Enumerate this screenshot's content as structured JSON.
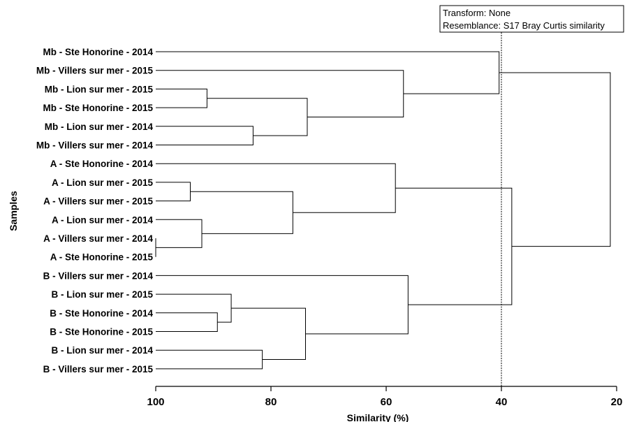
{
  "chart_data": {
    "type": "dendrogram",
    "xlabel": "Similarity (%)",
    "ylabel": "Samples",
    "xlim": [
      100,
      20
    ],
    "xticks": [
      100,
      80,
      60,
      40,
      20
    ],
    "cutoff_line": 40,
    "legend": [
      "Transform: None",
      "Resemblance: S17 Bray Curtis similarity"
    ],
    "legend_position": "top-right",
    "leaves": [
      "Mb - Ste Honorine - 2014",
      "Mb - Villers sur mer - 2015",
      "Mb - Lion sur mer - 2015",
      "Mb - Ste Honorine - 2015",
      "Mb - Lion sur mer - 2014",
      "Mb - Villers sur mer - 2014",
      "A - Ste Honorine - 2014",
      "A - Lion sur mer - 2015",
      "A - Villers sur mer - 2015",
      "A - Lion sur mer - 2014",
      "A - Villers sur mer - 2014",
      "A - Ste Honorine - 2015",
      "B - Villers sur mer - 2014",
      "B - Lion sur mer - 2015",
      "B - Ste Honorine - 2014",
      "B - Ste Honorine - 2015",
      "B - Lion sur mer - 2014",
      "B - Villers sur mer - 2015"
    ],
    "merges": [
      {
        "left": 2,
        "right": 3,
        "similarity": 91.1
      },
      {
        "left": 4,
        "right": 5,
        "similarity": 83.1
      },
      {
        "left": 18,
        "right": 19,
        "similarity": 73.7
      },
      {
        "left": 1,
        "right": 20,
        "similarity": 57.0
      },
      {
        "left": 0,
        "right": 21,
        "similarity": 40.4
      },
      {
        "left": 7,
        "right": 8,
        "similarity": 94.0
      },
      {
        "left": 10,
        "right": 11,
        "similarity": 100.0
      },
      {
        "left": 9,
        "right": 24,
        "similarity": 92.0
      },
      {
        "left": 23,
        "right": 25,
        "similarity": 76.2
      },
      {
        "left": 6,
        "right": 26,
        "similarity": 58.4
      },
      {
        "left": 14,
        "right": 15,
        "similarity": 89.3
      },
      {
        "left": 13,
        "right": 28,
        "similarity": 86.9
      },
      {
        "left": 16,
        "right": 17,
        "similarity": 81.5
      },
      {
        "left": 29,
        "right": 30,
        "similarity": 74.0
      },
      {
        "left": 12,
        "right": 31,
        "similarity": 56.2
      },
      {
        "left": 27,
        "right": 32,
        "similarity": 38.2
      },
      {
        "left": 22,
        "right": 33,
        "similarity": 21.1
      }
    ]
  }
}
